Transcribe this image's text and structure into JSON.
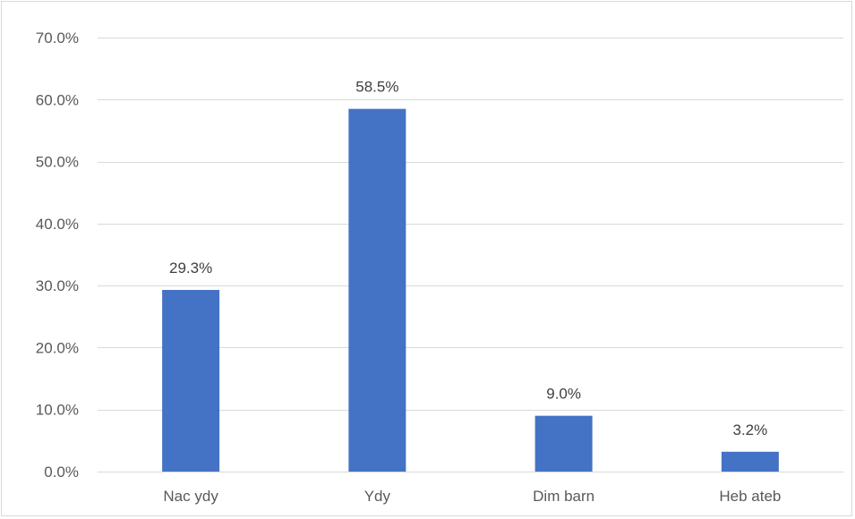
{
  "chart_data": {
    "type": "bar",
    "title": "",
    "xlabel": "",
    "ylabel": "",
    "categories": [
      "Nac ydy",
      "Ydy",
      "Dim barn",
      "Heb ateb"
    ],
    "values": [
      29.3,
      58.5,
      9.0,
      3.2
    ],
    "data_labels": [
      "29.3%",
      "58.5%",
      "9.0%",
      "3.2%"
    ],
    "ylim": [
      0,
      70
    ],
    "yticks": [
      0,
      10,
      20,
      30,
      40,
      50,
      60,
      70
    ],
    "ytick_labels": [
      "0.0%",
      "10.0%",
      "20.0%",
      "30.0%",
      "40.0%",
      "50.0%",
      "60.0%",
      "70.0%"
    ],
    "grid": true,
    "legend": "none",
    "bar_color": "#4472c4",
    "grid_color": "#d9d9d9"
  }
}
